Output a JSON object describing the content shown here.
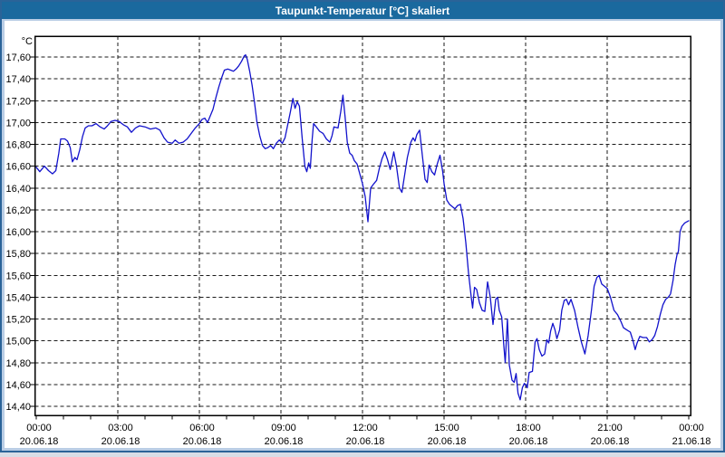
{
  "window": {
    "title": "Taupunkt-Temperatur [°C] skaliert"
  },
  "colors": {
    "titlebar_bg": "#1A699E",
    "title_text": "#FFFFFF",
    "window_border": "#2A6398",
    "frame_bg": "#B9CDE5",
    "panel_bg": "#FFFFFF",
    "plot_border": "#000000",
    "grid": "#1A1A1A",
    "line": "#1212CC",
    "label": "#000000"
  },
  "chart_data": {
    "type": "line",
    "title": "Taupunkt-Temperatur [°C] skaliert",
    "y_unit_label": "°C",
    "ylabel": "",
    "xlabel": "",
    "ylim": [
      14.4,
      17.6
    ],
    "ytick_step": 0.2,
    "ytick_labels": [
      "17,60",
      "17,40",
      "17,20",
      "17,00",
      "16,80",
      "16,60",
      "16,40",
      "16,20",
      "16,00",
      "15,80",
      "15,60",
      "15,40",
      "15,20",
      "15,00",
      "14,80",
      "14,60",
      "14,40"
    ],
    "x_hours_range": [
      0,
      24
    ],
    "minor_tick_hours": 1,
    "grid": "dashed",
    "legend": "none",
    "xticks": [
      {
        "hour": 0,
        "time": "00:00",
        "date": "20.06.18"
      },
      {
        "hour": 3,
        "time": "03:00",
        "date": "20.06.18"
      },
      {
        "hour": 6,
        "time": "06:00",
        "date": "20.06.18"
      },
      {
        "hour": 9,
        "time": "09:00",
        "date": "20.06.18"
      },
      {
        "hour": 12,
        "time": "12:00",
        "date": "20.06.18"
      },
      {
        "hour": 15,
        "time": "15:00",
        "date": "20.06.18"
      },
      {
        "hour": 18,
        "time": "18:00",
        "date": "20.06.18"
      },
      {
        "hour": 21,
        "time": "21:00",
        "date": "20.06.18"
      },
      {
        "hour": 24,
        "time": "00:00",
        "date": "21.06.18"
      }
    ],
    "series": [
      {
        "name": "Taupunkt-Temperatur",
        "points": [
          [
            0.0,
            16.59
          ],
          [
            0.13,
            16.55
          ],
          [
            0.3,
            16.6
          ],
          [
            0.45,
            16.56
          ],
          [
            0.6,
            16.53
          ],
          [
            0.72,
            16.56
          ],
          [
            0.83,
            16.72
          ],
          [
            0.9,
            16.85
          ],
          [
            1.05,
            16.85
          ],
          [
            1.15,
            16.83
          ],
          [
            1.25,
            16.77
          ],
          [
            1.33,
            16.64
          ],
          [
            1.42,
            16.68
          ],
          [
            1.5,
            16.66
          ],
          [
            1.6,
            16.75
          ],
          [
            1.7,
            16.87
          ],
          [
            1.8,
            16.95
          ],
          [
            1.92,
            16.97
          ],
          [
            2.05,
            16.97
          ],
          [
            2.2,
            16.99
          ],
          [
            2.35,
            16.96
          ],
          [
            2.5,
            16.94
          ],
          [
            2.62,
            16.97
          ],
          [
            2.75,
            17.01
          ],
          [
            2.9,
            17.02
          ],
          [
            3.05,
            17.01
          ],
          [
            3.2,
            16.98
          ],
          [
            3.35,
            16.96
          ],
          [
            3.5,
            16.91
          ],
          [
            3.65,
            16.95
          ],
          [
            3.8,
            16.97
          ],
          [
            4.0,
            16.96
          ],
          [
            4.2,
            16.94
          ],
          [
            4.4,
            16.95
          ],
          [
            4.55,
            16.93
          ],
          [
            4.7,
            16.86
          ],
          [
            4.83,
            16.82
          ],
          [
            5.0,
            16.81
          ],
          [
            5.11,
            16.84
          ],
          [
            5.25,
            16.81
          ],
          [
            5.4,
            16.82
          ],
          [
            5.55,
            16.85
          ],
          [
            5.7,
            16.9
          ],
          [
            5.85,
            16.95
          ],
          [
            6.0,
            16.99
          ],
          [
            6.1,
            17.03
          ],
          [
            6.2,
            17.04
          ],
          [
            6.3,
            17.0
          ],
          [
            6.4,
            17.06
          ],
          [
            6.5,
            17.12
          ],
          [
            6.61,
            17.23
          ],
          [
            6.72,
            17.33
          ],
          [
            6.82,
            17.41
          ],
          [
            6.92,
            17.48
          ],
          [
            7.05,
            17.49
          ],
          [
            7.15,
            17.48
          ],
          [
            7.25,
            17.47
          ],
          [
            7.35,
            17.49
          ],
          [
            7.45,
            17.52
          ],
          [
            7.55,
            17.56
          ],
          [
            7.65,
            17.61
          ],
          [
            7.7,
            17.62
          ],
          [
            7.76,
            17.58
          ],
          [
            7.85,
            17.47
          ],
          [
            7.94,
            17.34
          ],
          [
            8.03,
            17.18
          ],
          [
            8.12,
            17.0
          ],
          [
            8.22,
            16.88
          ],
          [
            8.32,
            16.79
          ],
          [
            8.42,
            16.76
          ],
          [
            8.52,
            16.77
          ],
          [
            8.62,
            16.79
          ],
          [
            8.72,
            16.76
          ],
          [
            8.83,
            16.81
          ],
          [
            8.94,
            16.84
          ],
          [
            9.05,
            16.81
          ],
          [
            9.15,
            16.86
          ],
          [
            9.25,
            16.98
          ],
          [
            9.35,
            17.1
          ],
          [
            9.44,
            17.22
          ],
          [
            9.52,
            17.13
          ],
          [
            9.6,
            17.19
          ],
          [
            9.68,
            17.15
          ],
          [
            9.78,
            16.86
          ],
          [
            9.88,
            16.6
          ],
          [
            9.95,
            16.55
          ],
          [
            10.02,
            16.63
          ],
          [
            10.08,
            16.58
          ],
          [
            10.15,
            16.85
          ],
          [
            10.2,
            16.99
          ],
          [
            10.3,
            16.96
          ],
          [
            10.42,
            16.92
          ],
          [
            10.55,
            16.9
          ],
          [
            10.67,
            16.85
          ],
          [
            10.8,
            16.82
          ],
          [
            10.88,
            16.88
          ],
          [
            10.95,
            16.96
          ],
          [
            11.1,
            16.95
          ],
          [
            11.2,
            17.1
          ],
          [
            11.28,
            17.25
          ],
          [
            11.36,
            17.05
          ],
          [
            11.44,
            16.82
          ],
          [
            11.53,
            16.72
          ],
          [
            11.62,
            16.7
          ],
          [
            11.7,
            16.65
          ],
          [
            11.8,
            16.62
          ],
          [
            11.9,
            16.53
          ],
          [
            12.0,
            16.44
          ],
          [
            12.1,
            16.32
          ],
          [
            12.2,
            16.09
          ],
          [
            12.3,
            16.4
          ],
          [
            12.42,
            16.44
          ],
          [
            12.52,
            16.47
          ],
          [
            12.62,
            16.58
          ],
          [
            12.72,
            16.67
          ],
          [
            12.82,
            16.73
          ],
          [
            12.92,
            16.66
          ],
          [
            13.02,
            16.57
          ],
          [
            13.15,
            16.73
          ],
          [
            13.25,
            16.6
          ],
          [
            13.36,
            16.4
          ],
          [
            13.45,
            16.36
          ],
          [
            13.55,
            16.52
          ],
          [
            13.65,
            16.68
          ],
          [
            13.78,
            16.82
          ],
          [
            13.86,
            16.86
          ],
          [
            13.93,
            16.83
          ],
          [
            14.0,
            16.89
          ],
          [
            14.1,
            16.93
          ],
          [
            14.2,
            16.7
          ],
          [
            14.3,
            16.48
          ],
          [
            14.38,
            16.45
          ],
          [
            14.45,
            16.61
          ],
          [
            14.55,
            16.55
          ],
          [
            14.65,
            16.52
          ],
          [
            14.75,
            16.62
          ],
          [
            14.85,
            16.7
          ],
          [
            14.95,
            16.55
          ],
          [
            15.0,
            16.44
          ],
          [
            15.1,
            16.29
          ],
          [
            15.2,
            16.25
          ],
          [
            15.3,
            16.23
          ],
          [
            15.4,
            16.21
          ],
          [
            15.5,
            16.24
          ],
          [
            15.6,
            16.25
          ],
          [
            15.7,
            16.12
          ],
          [
            15.8,
            15.9
          ],
          [
            15.9,
            15.62
          ],
          [
            16.0,
            15.4
          ],
          [
            16.05,
            15.3
          ],
          [
            16.12,
            15.49
          ],
          [
            16.2,
            15.47
          ],
          [
            16.3,
            15.35
          ],
          [
            16.4,
            15.28
          ],
          [
            16.5,
            15.27
          ],
          [
            16.6,
            15.54
          ],
          [
            16.7,
            15.4
          ],
          [
            16.8,
            15.15
          ],
          [
            16.9,
            15.38
          ],
          [
            16.97,
            15.4
          ],
          [
            17.03,
            15.28
          ],
          [
            17.12,
            15.22
          ],
          [
            17.2,
            14.95
          ],
          [
            17.25,
            14.8
          ],
          [
            17.33,
            15.2
          ],
          [
            17.4,
            14.78
          ],
          [
            17.5,
            14.64
          ],
          [
            17.58,
            14.62
          ],
          [
            17.65,
            14.7
          ],
          [
            17.72,
            14.52
          ],
          [
            17.8,
            14.46
          ],
          [
            17.88,
            14.57
          ],
          [
            17.95,
            14.61
          ],
          [
            18.0,
            14.6
          ],
          [
            18.06,
            14.57
          ],
          [
            18.13,
            14.71
          ],
          [
            18.25,
            14.72
          ],
          [
            18.35,
            14.99
          ],
          [
            18.42,
            15.02
          ],
          [
            18.5,
            14.92
          ],
          [
            18.6,
            14.86
          ],
          [
            18.7,
            14.88
          ],
          [
            18.78,
            15.01
          ],
          [
            18.85,
            14.98
          ],
          [
            18.92,
            15.09
          ],
          [
            19.0,
            15.16
          ],
          [
            19.08,
            15.1
          ],
          [
            19.15,
            15.02
          ],
          [
            19.25,
            15.1
          ],
          [
            19.33,
            15.28
          ],
          [
            19.42,
            15.37
          ],
          [
            19.5,
            15.38
          ],
          [
            19.58,
            15.33
          ],
          [
            19.67,
            15.38
          ],
          [
            19.8,
            15.28
          ],
          [
            19.93,
            15.12
          ],
          [
            20.05,
            14.99
          ],
          [
            20.18,
            14.88
          ],
          [
            20.3,
            15.05
          ],
          [
            20.42,
            15.28
          ],
          [
            20.52,
            15.5
          ],
          [
            20.62,
            15.58
          ],
          [
            20.7,
            15.6
          ],
          [
            20.8,
            15.52
          ],
          [
            20.9,
            15.5
          ],
          [
            21.0,
            15.48
          ],
          [
            21.12,
            15.4
          ],
          [
            21.25,
            15.28
          ],
          [
            21.38,
            15.24
          ],
          [
            21.5,
            15.18
          ],
          [
            21.6,
            15.12
          ],
          [
            21.72,
            15.1
          ],
          [
            21.85,
            15.08
          ],
          [
            21.95,
            15.0
          ],
          [
            22.03,
            14.92
          ],
          [
            22.1,
            14.98
          ],
          [
            22.2,
            15.04
          ],
          [
            22.32,
            15.03
          ],
          [
            22.45,
            15.03
          ],
          [
            22.55,
            14.99
          ],
          [
            22.65,
            15.01
          ],
          [
            22.75,
            15.05
          ],
          [
            22.85,
            15.13
          ],
          [
            22.95,
            15.24
          ],
          [
            23.05,
            15.33
          ],
          [
            23.15,
            15.38
          ],
          [
            23.25,
            15.4
          ],
          [
            23.33,
            15.43
          ],
          [
            23.42,
            15.55
          ],
          [
            23.5,
            15.7
          ],
          [
            23.57,
            15.79
          ],
          [
            23.62,
            15.82
          ],
          [
            23.68,
            16.0
          ],
          [
            23.75,
            16.05
          ],
          [
            23.85,
            16.08
          ],
          [
            23.93,
            16.09
          ],
          [
            24.0,
            16.1
          ]
        ]
      }
    ]
  }
}
